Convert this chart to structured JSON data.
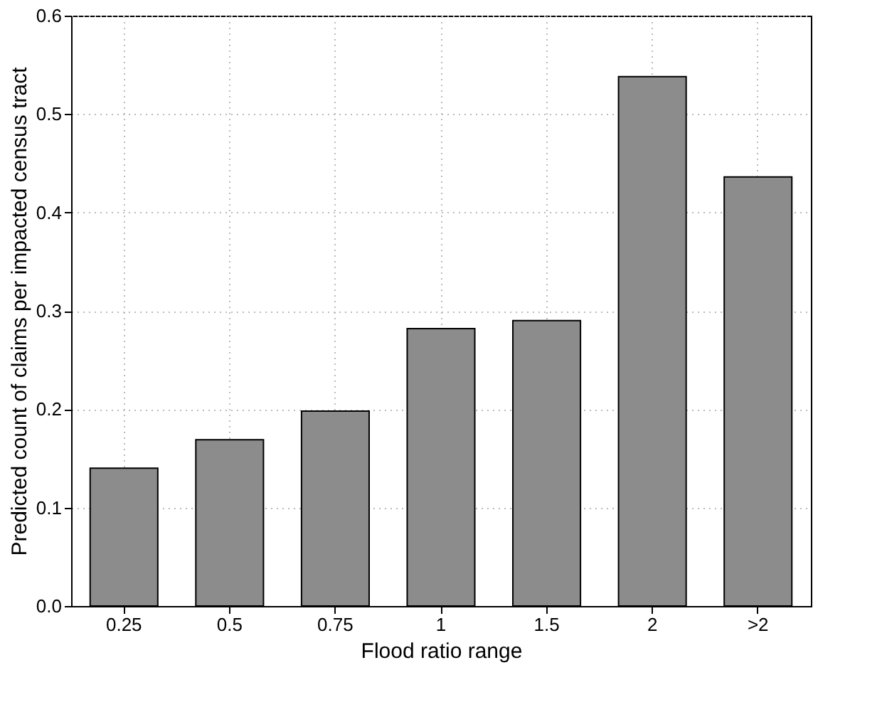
{
  "chart_data": {
    "type": "bar",
    "xlabel": "Flood ratio range",
    "ylabel": "Predicted count of claims per impacted census tract",
    "categories": [
      "0.25",
      "0.5",
      "0.75",
      "1",
      "1.5",
      "2",
      ">2"
    ],
    "values": [
      0.14,
      0.169,
      0.198,
      0.282,
      0.29,
      0.538,
      0.436
    ],
    "color": "#8c8c8c",
    "ylim": [
      0,
      0.6
    ],
    "yticks": [
      {
        "value": 0,
        "label": "0.0"
      },
      0.1,
      0.2,
      0.3,
      0.4,
      0.5,
      0.6
    ],
    "grid": true
  }
}
